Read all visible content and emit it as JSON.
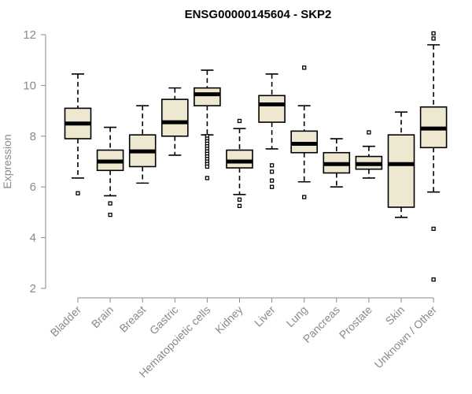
{
  "chart_data": {
    "type": "boxplot",
    "title": "ENSG00000145604 - SKP2",
    "ylabel": "Expression",
    "xlabel": "",
    "ylim": [
      2,
      12
    ],
    "yticks": [
      2,
      4,
      6,
      8,
      10,
      12
    ],
    "grid": false,
    "legend": "none",
    "box_color": "#efe8d0",
    "line_color": "#000000",
    "axis_color": "#8a8a8a",
    "categories": [
      "Bladder",
      "Brain",
      "Breast",
      "Gastric",
      "Hematopoietic cells",
      "Kidney",
      "Liver",
      "Lung",
      "Pancreas",
      "Prostate",
      "Skin",
      "Unknown / Other"
    ],
    "boxes": [
      {
        "name": "Bladder",
        "whisker_low": 6.35,
        "q1": 7.9,
        "median": 8.5,
        "q3": 9.1,
        "whisker_high": 10.45,
        "outliers": [
          5.75
        ]
      },
      {
        "name": "Brain",
        "whisker_low": 5.65,
        "q1": 6.65,
        "median": 7.0,
        "q3": 7.45,
        "whisker_high": 8.35,
        "outliers": [
          5.35,
          4.9
        ]
      },
      {
        "name": "Breast",
        "whisker_low": 6.15,
        "q1": 6.8,
        "median": 7.4,
        "q3": 8.05,
        "whisker_high": 9.2,
        "outliers": []
      },
      {
        "name": "Gastric",
        "whisker_low": 7.25,
        "q1": 8.0,
        "median": 8.55,
        "q3": 9.45,
        "whisker_high": 9.9,
        "outliers": []
      },
      {
        "name": "Hematopoietic cells",
        "whisker_low": 8.05,
        "q1": 9.2,
        "median": 9.65,
        "q3": 9.9,
        "whisker_high": 10.6,
        "outliers": [
          8.0,
          7.9,
          7.8,
          7.7,
          7.6,
          7.5,
          7.4,
          7.3,
          7.2,
          7.1,
          7.0,
          6.9,
          6.8,
          6.35
        ]
      },
      {
        "name": "Kidney",
        "whisker_low": 5.7,
        "q1": 6.75,
        "median": 7.0,
        "q3": 7.45,
        "whisker_high": 8.3,
        "outliers": [
          8.6,
          5.5,
          5.25
        ]
      },
      {
        "name": "Liver",
        "whisker_low": 7.5,
        "q1": 8.55,
        "median": 9.25,
        "q3": 9.6,
        "whisker_high": 10.45,
        "outliers": [
          6.85,
          6.6,
          6.25,
          6.0
        ]
      },
      {
        "name": "Lung",
        "whisker_low": 6.2,
        "q1": 7.35,
        "median": 7.7,
        "q3": 8.2,
        "whisker_high": 9.2,
        "outliers": [
          10.7,
          5.6
        ]
      },
      {
        "name": "Pancreas",
        "whisker_low": 6.0,
        "q1": 6.55,
        "median": 6.9,
        "q3": 7.35,
        "whisker_high": 7.9,
        "outliers": []
      },
      {
        "name": "Prostate",
        "whisker_low": 6.35,
        "q1": 6.7,
        "median": 6.9,
        "q3": 7.2,
        "whisker_high": 7.6,
        "outliers": [
          8.15
        ]
      },
      {
        "name": "Skin",
        "whisker_low": 4.8,
        "q1": 5.2,
        "median": 6.9,
        "q3": 8.05,
        "whisker_high": 8.95,
        "outliers": []
      },
      {
        "name": "Unknown / Other",
        "whisker_low": 5.8,
        "q1": 7.55,
        "median": 8.3,
        "q3": 9.15,
        "whisker_high": 11.6,
        "outliers": [
          12.05,
          11.85,
          4.35,
          2.35
        ]
      }
    ]
  }
}
